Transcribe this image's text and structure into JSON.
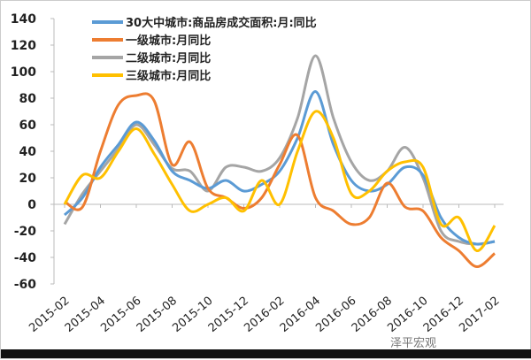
{
  "chart_data": {
    "type": "line",
    "title": "",
    "xlabel": "",
    "ylabel": "",
    "ylim": [
      -60,
      140
    ],
    "yticks": [
      -60,
      -40,
      -20,
      0,
      20,
      40,
      60,
      80,
      100,
      120,
      140
    ],
    "x": [
      "2015-02",
      "2015-03",
      "2015-04",
      "2015-05",
      "2015-06",
      "2015-07",
      "2015-08",
      "2015-09",
      "2015-10",
      "2015-11",
      "2015-12",
      "2016-01",
      "2016-02",
      "2016-03",
      "2016-04",
      "2016-05",
      "2016-06",
      "2016-07",
      "2016-08",
      "2016-09",
      "2016-10",
      "2016-11",
      "2016-12",
      "2017-01",
      "2017-02"
    ],
    "xticks": [
      "2015-02",
      "2015-04",
      "2015-06",
      "2015-08",
      "2015-10",
      "2015-12",
      "2016-02",
      "2016-04",
      "2016-06",
      "2016-08",
      "2016-10",
      "2016-12",
      "2017-02"
    ],
    "legend_position": "top-left",
    "grid": false,
    "series": [
      {
        "name": "30大中城市:商品房成交面积:月:同比",
        "color": "#5b9bd5",
        "values": [
          -8,
          5,
          28,
          45,
          62,
          48,
          25,
          18,
          12,
          18,
          10,
          15,
          25,
          50,
          85,
          45,
          18,
          10,
          15,
          28,
          22,
          -10,
          -25,
          -30,
          -28
        ]
      },
      {
        "name": "一级城市:月同比",
        "color": "#ed7d31",
        "values": [
          2,
          -2,
          40,
          75,
          82,
          78,
          30,
          47,
          12,
          5,
          -3,
          5,
          30,
          52,
          5,
          -5,
          -15,
          -10,
          16,
          -2,
          -5,
          -25,
          -35,
          -47,
          -37
        ]
      },
      {
        "name": "二级城市:月同比",
        "color": "#a5a5a5",
        "values": [
          -15,
          8,
          25,
          42,
          60,
          45,
          27,
          25,
          10,
          28,
          28,
          25,
          35,
          65,
          112,
          65,
          32,
          18,
          25,
          43,
          20,
          -20,
          -28,
          -30,
          -28
        ]
      },
      {
        "name": "三级城市:月同比",
        "color": "#ffc000",
        "values": [
          0,
          22,
          20,
          40,
          57,
          38,
          15,
          -5,
          0,
          5,
          -5,
          18,
          0,
          40,
          70,
          50,
          8,
          10,
          25,
          32,
          28,
          -15,
          -10,
          -35,
          -16
        ]
      }
    ]
  },
  "watermark": "泽平宏观"
}
